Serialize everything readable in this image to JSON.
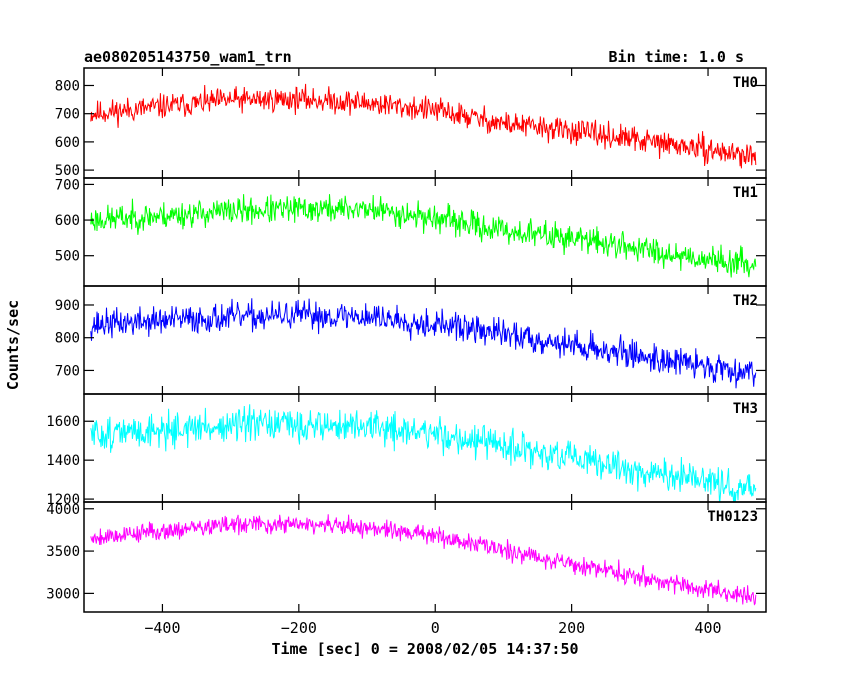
{
  "chart_data": {
    "type": "line",
    "title": "ae080205143750_wam1_trn",
    "bin_time_label": "Bin time: 1.0 s",
    "xlabel": "Time [sec] 0 = 2008/02/05 14:37:50",
    "ylabel": "Counts/sec",
    "xlim": [
      -515,
      485
    ],
    "x_ticks": [
      -400,
      -200,
      0,
      200,
      400
    ],
    "x_tick_labels": [
      "−400",
      "−200",
      "0",
      "200",
      "400"
    ],
    "x_data_range": [
      -505,
      470
    ],
    "sampling_step_sec": 1.0,
    "panels": [
      {
        "name": "TH0",
        "color": "#ff0000",
        "ylim": [
          472,
          862
        ],
        "y_ticks": [
          500,
          600,
          700,
          800
        ],
        "trend": [
          [
            -505,
            700
          ],
          [
            -400,
            725
          ],
          [
            -300,
            748
          ],
          [
            -200,
            752
          ],
          [
            -100,
            738
          ],
          [
            0,
            712
          ],
          [
            100,
            665
          ],
          [
            200,
            638
          ],
          [
            300,
            605
          ],
          [
            400,
            572
          ],
          [
            470,
            548
          ]
        ],
        "noise_amplitude": 38,
        "seed": 11
      },
      {
        "name": "TH1",
        "color": "#00ff00",
        "ylim": [
          415,
          718
        ],
        "y_ticks": [
          500,
          600,
          700
        ],
        "trend": [
          [
            -505,
            600
          ],
          [
            -400,
            612
          ],
          [
            -300,
            625
          ],
          [
            -200,
            630
          ],
          [
            -100,
            632
          ],
          [
            0,
            605
          ],
          [
            100,
            570
          ],
          [
            200,
            550
          ],
          [
            300,
            520
          ],
          [
            400,
            490
          ],
          [
            470,
            475
          ]
        ],
        "noise_amplitude": 33,
        "seed": 23
      },
      {
        "name": "TH2",
        "color": "#0000ff",
        "ylim": [
          628,
          958
        ],
        "y_ticks": [
          700,
          800,
          900
        ],
        "trend": [
          [
            -505,
            840
          ],
          [
            -400,
            852
          ],
          [
            -300,
            862
          ],
          [
            -200,
            868
          ],
          [
            -100,
            865
          ],
          [
            0,
            842
          ],
          [
            100,
            812
          ],
          [
            200,
            778
          ],
          [
            300,
            745
          ],
          [
            400,
            712
          ],
          [
            470,
            695
          ]
        ],
        "noise_amplitude": 38,
        "seed": 37
      },
      {
        "name": "TH3",
        "color": "#00ffff",
        "ylim": [
          1185,
          1740
        ],
        "y_ticks": [
          1200,
          1400,
          1600
        ],
        "trend": [
          [
            -505,
            1530
          ],
          [
            -400,
            1555
          ],
          [
            -300,
            1575
          ],
          [
            -200,
            1580
          ],
          [
            -100,
            1572
          ],
          [
            0,
            1535
          ],
          [
            100,
            1470
          ],
          [
            200,
            1405
          ],
          [
            300,
            1345
          ],
          [
            400,
            1285
          ],
          [
            470,
            1250
          ]
        ],
        "noise_amplitude": 75,
        "seed": 51
      },
      {
        "name": "TH0123",
        "color": "#ff00ff",
        "ylim": [
          2780,
          4080
        ],
        "y_ticks": [
          3000,
          3500,
          4000
        ],
        "trend": [
          [
            -505,
            3660
          ],
          [
            -400,
            3740
          ],
          [
            -300,
            3810
          ],
          [
            -200,
            3815
          ],
          [
            -100,
            3775
          ],
          [
            0,
            3680
          ],
          [
            100,
            3520
          ],
          [
            200,
            3350
          ],
          [
            300,
            3200
          ],
          [
            400,
            3040
          ],
          [
            470,
            2950
          ]
        ],
        "noise_amplitude": 95,
        "seed": 79
      }
    ]
  }
}
